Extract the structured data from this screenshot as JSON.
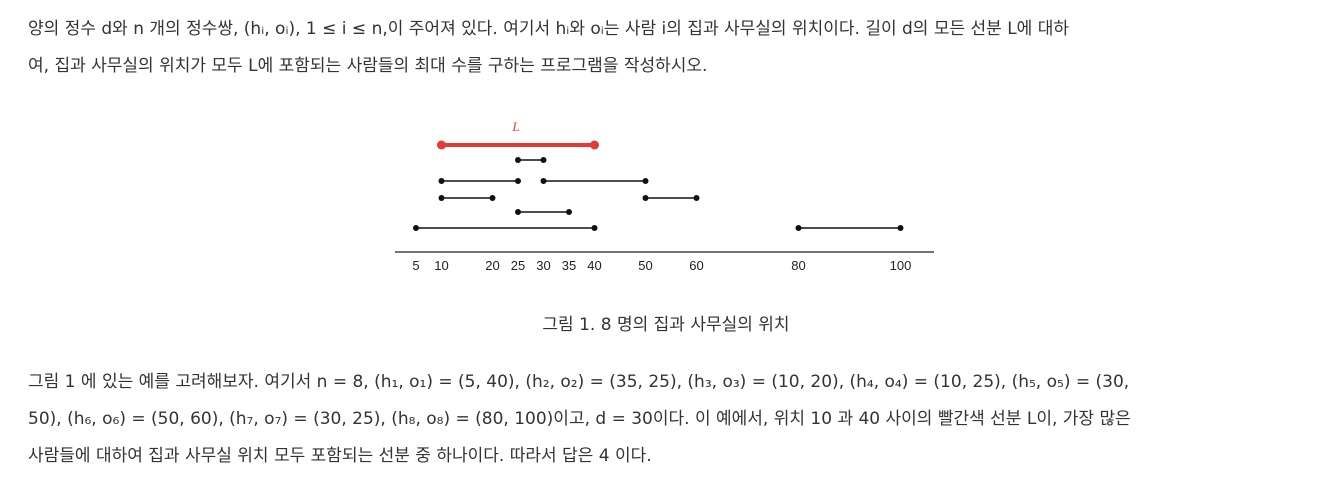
{
  "paragraph1": {
    "line1": "양의 정수 d와 n 개의 정수쌍, (hᵢ, oᵢ), 1 ≤ i ≤ n,이 주어져 있다. 여기서 hᵢ와 oᵢ는 사람 i의 집과 사무실의 위치이다. 길이 d의 모든 선분 L에 대하",
    "line2": "여, 집과 사무실의 위치가 모두 L에 포함되는 사람들의 최대 수를 구하는 프로그램을 작성하시오."
  },
  "figure": {
    "segment_label": "L",
    "highlight_color": "#e53935",
    "line_color": "#111111",
    "highlight": [
      10,
      40
    ],
    "segments": [
      {
        "row": 1,
        "from": 25,
        "to": 30
      },
      {
        "row": 2,
        "from": 10,
        "to": 25
      },
      {
        "row": 2,
        "from": 30,
        "to": 50
      },
      {
        "row": 3,
        "from": 10,
        "to": 20
      },
      {
        "row": 3,
        "from": 50,
        "to": 60
      },
      {
        "row": 4,
        "from": 25,
        "to": 35
      },
      {
        "row": 5,
        "from": 5,
        "to": 40
      },
      {
        "row": 5,
        "from": 80,
        "to": 100
      }
    ],
    "tick_labels": [
      "5",
      "10",
      "20",
      "25",
      "30",
      "35",
      "40",
      "50",
      "60",
      "80",
      "100"
    ]
  },
  "caption": "그림 1. 8 명의 집과 사무실의 위치",
  "paragraph2": {
    "line1": "그림 1 에 있는 예를 고려해보자. 여기서 n = 8, (h₁, o₁) = (5, 40), (h₂, o₂) = (35, 25), (h₃, o₃) = (10, 20), (h₄, o₄) = (10, 25), (h₅, o₅) = (30,",
    "line2": "50), (h₆, o₆) = (50, 60), (h₇, o₇) = (30, 25), (h₈, o₈) = (80, 100)이고, d = 30이다. 이 예에서, 위치 10 과 40 사이의 빨간색 선분 L이, 가장 많은",
    "line3": "사람들에 대하여 집과 사무실 위치 모두 포함되는 선분 중 하나이다. 따라서 답은 4 이다."
  }
}
